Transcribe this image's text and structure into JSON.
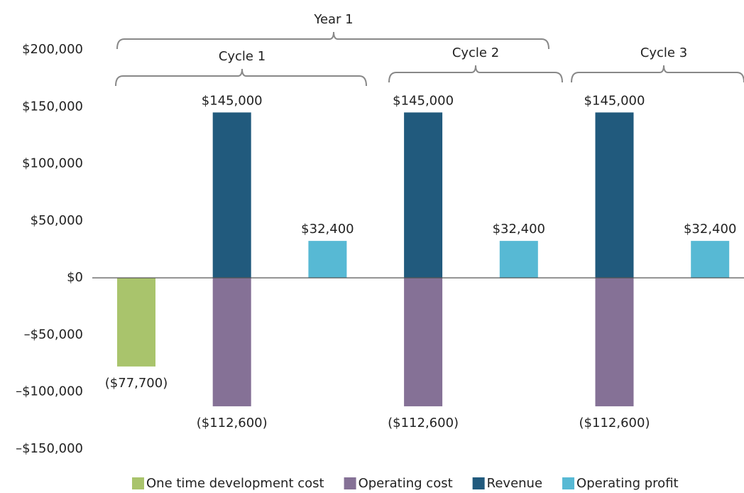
{
  "chart_data": {
    "type": "bar",
    "annotations": [
      "Year 1",
      "Cycle 1",
      "Cycle 2",
      "Cycle 3"
    ],
    "categories": [
      null,
      null,
      null,
      null,
      null,
      null,
      null
    ],
    "ylim": [
      -150000,
      200000
    ],
    "yticks": [
      {
        "value": -150000,
        "label": "–$150,000"
      },
      {
        "value": -100000,
        "label": "–$100,000"
      },
      {
        "value": -50000,
        "label": "–$50,000"
      },
      {
        "value": 0,
        "label": "$0"
      },
      {
        "value": 50000,
        "label": "$50,000"
      },
      {
        "value": 100000,
        "label": "$100,000"
      },
      {
        "value": 150000,
        "label": "$150,000"
      },
      {
        "value": 200000,
        "label": "$200,000"
      }
    ],
    "grid": false,
    "legend": "bottom",
    "series": [
      {
        "name": "One time development cost",
        "color": "#a9c46c",
        "values": [
          -77700,
          null,
          null,
          null,
          null,
          null,
          null
        ],
        "value_labels": [
          "($77,700)",
          null,
          null,
          null,
          null,
          null,
          null
        ]
      },
      {
        "name": "Operating cost",
        "color": "#857196",
        "values": [
          null,
          -112600,
          null,
          -112600,
          null,
          -112600,
          null
        ],
        "value_labels": [
          null,
          "($112,600)",
          null,
          "($112,600)",
          null,
          "($112,600)",
          null
        ]
      },
      {
        "name": "Revenue",
        "color": "#215a7d",
        "values": [
          null,
          145000,
          null,
          145000,
          null,
          145000,
          null
        ],
        "value_labels": [
          null,
          "$145,000",
          null,
          "$145,000",
          null,
          "$145,000",
          null
        ]
      },
      {
        "name": "Operating profit",
        "color": "#57b9d4",
        "values": [
          null,
          null,
          32400,
          null,
          32400,
          null,
          32400
        ],
        "value_labels": [
          null,
          null,
          "$32,400",
          null,
          "$32,400",
          null,
          "$32,400"
        ]
      }
    ]
  }
}
